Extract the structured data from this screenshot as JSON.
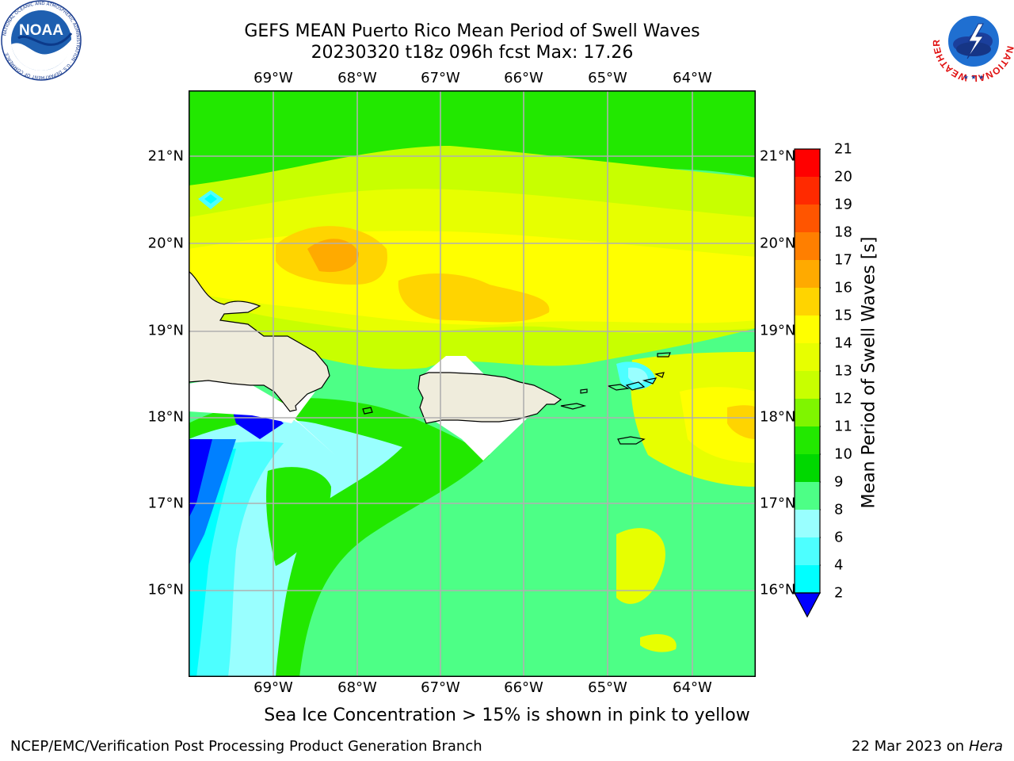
{
  "title": {
    "line1": "GEFS MEAN Puerto Rico Mean Period of Swell Waves",
    "line2": "20230320 t18z 096h fcst   Max: 17.26"
  },
  "logos": {
    "left": {
      "name": "noaa-logo",
      "text": "NOAA",
      "ring_text": "NATIONAL OCEANIC AND ATMOSPHERIC ADMINISTRATION · U.S. DEPARTMENT OF COMMERCE"
    },
    "right": {
      "name": "nws-logo",
      "ring_text": "NATIONAL WEATHER SERVICE"
    }
  },
  "map": {
    "longitude_labels": [
      "69°W",
      "68°W",
      "67°W",
      "66°W",
      "65°W",
      "64°W"
    ],
    "latitude_labels": [
      "21°N",
      "20°N",
      "19°N",
      "18°N",
      "17°N",
      "16°N"
    ],
    "lon_range": [
      "69.9°W",
      "63.3°W"
    ],
    "lat_range": [
      "15.0°N",
      "21.7°N"
    ],
    "land_color": "#efecdc",
    "grid_color": "#b0b0b0"
  },
  "colorbar": {
    "label": "Mean Period of Swell Waves [s]",
    "ticks": [
      "21",
      "20",
      "19",
      "18",
      "17",
      "16",
      "15",
      "14",
      "13",
      "12",
      "11",
      "10",
      "9",
      "8",
      "6",
      "4",
      "2"
    ],
    "colors": [
      "#ff0000",
      "#ff2a00",
      "#ff5500",
      "#ff7f00",
      "#ffaa00",
      "#ffd400",
      "#ffff00",
      "#e7ff00",
      "#c8ff00",
      "#7ff500",
      "#22e800",
      "#00d800",
      "#4dff86",
      "#99ffff",
      "#4dffff",
      "#00ffff",
      "#0080ff",
      "#0000ff"
    ]
  },
  "footer": {
    "ice_note": "Sea Ice Concentration > 15% is shown in pink to yellow",
    "credit": "NCEP/EMC/Verification Post Processing Product Generation Branch",
    "date": "22 Mar 2023 on",
    "host": "Hera"
  }
}
